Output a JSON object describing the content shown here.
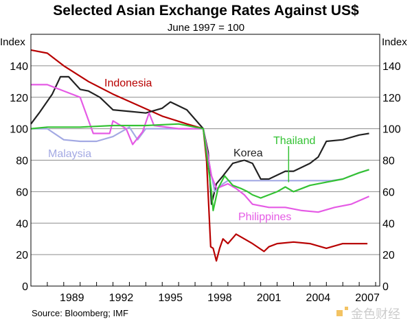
{
  "chart_data": {
    "type": "line",
    "title": "Selected Asian Exchange Rates Against US$",
    "subtitle": "June 1997 = 100",
    "ylabel_left": "Index",
    "ylabel_right": "Index",
    "xlim": [
      1987.0,
      2008.25
    ],
    "ylim": [
      0,
      160
    ],
    "yticks": [
      0,
      20,
      40,
      60,
      80,
      100,
      120,
      140
    ],
    "xtick_labels": [
      "1989",
      "1992",
      "1995",
      "1998",
      "2001",
      "2004",
      "2007"
    ],
    "grid": true,
    "source": "Source: Bloomberg; IMF",
    "series": [
      {
        "name": "Indonesia",
        "color": "#b80000",
        "x": [
          1987,
          1988,
          1989,
          1990.5,
          1992,
          1993.5,
          1995,
          1996.5,
          1997.5,
          1997.7,
          1997.95,
          1998.1,
          1998.3,
          1998.5,
          1998.7,
          1999,
          1999.5,
          2000,
          2000.5,
          2001.2,
          2001.5,
          2002,
          2003,
          2004,
          2005,
          2006,
          2007.5
        ],
        "y": [
          150,
          148,
          140,
          130,
          122,
          115,
          108,
          103,
          100,
          80,
          25,
          24,
          16,
          24,
          30,
          27,
          33,
          30,
          27,
          22,
          25,
          27,
          28,
          27,
          24,
          27,
          27
        ]
      },
      {
        "name": "Korea",
        "color": "#222222",
        "x": [
          1987,
          1987.5,
          1988.3,
          1988.8,
          1989.3,
          1990,
          1990.5,
          1991.2,
          1992,
          1993,
          1994,
          1995,
          1995.5,
          1996.5,
          1997.5,
          1997.8,
          1998.0,
          1998.3,
          1998.7,
          1999.3,
          2000,
          2000.5,
          2001,
          2001.5,
          2002.5,
          2003,
          2004,
          2004.5,
          2005,
          2006,
          2007,
          2007.6
        ],
        "y": [
          103,
          110,
          122,
          133,
          133,
          125,
          124,
          120,
          112,
          111,
          110,
          113,
          117,
          112,
          100,
          85,
          52,
          65,
          70,
          78,
          80,
          78,
          68,
          68,
          73,
          73,
          78,
          82,
          92,
          93,
          96,
          97
        ]
      },
      {
        "name": "Malaysia",
        "color": "#a3a9e3",
        "x": [
          1987,
          1988,
          1989,
          1990,
          1991,
          1992,
          1993,
          1993.5,
          1994,
          1996,
          1997.5,
          1998,
          1998.2,
          1998.7,
          1999,
          2003,
          2005.3,
          2006,
          2007,
          2007.6
        ],
        "y": [
          100,
          100,
          93,
          92,
          92,
          95,
          101,
          93,
          100,
          100,
          100,
          70,
          60,
          65,
          67,
          67,
          67,
          68,
          72,
          74
        ]
      },
      {
        "name": "Philippines",
        "color": "#e55ae5",
        "x": [
          1987,
          1988,
          1989,
          1990,
          1990.8,
          1991.8,
          1992,
          1992.8,
          1993.2,
          1993.8,
          1994.2,
          1994.5,
          1996,
          1997.5,
          1998,
          1998.3,
          1999,
          1999.5,
          2000,
          2000.5,
          2001.5,
          2002.5,
          2003.5,
          2004.5,
          2005.5,
          2006.5,
          2007.6
        ],
        "y": [
          128,
          128,
          124,
          120,
          97,
          97,
          105,
          100,
          90,
          98,
          110,
          102,
          100,
          100,
          70,
          62,
          65,
          62,
          58,
          52,
          50,
          50,
          48,
          47,
          50,
          52,
          57
        ]
      },
      {
        "name": "Thailand",
        "color": "#33c233",
        "x": [
          1987,
          1988,
          1990,
          1992,
          1994,
          1996,
          1997.5,
          1998,
          1998.1,
          1998.4,
          1998.8,
          1999.3,
          1999.8,
          2000.2,
          2000.5,
          2001,
          2001.5,
          2002,
          2002.5,
          2003,
          2003.5,
          2004,
          2005,
          2006,
          2007,
          2007.6
        ],
        "y": [
          100,
          101,
          101,
          102,
          102,
          103,
          100,
          60,
          48,
          62,
          70,
          64,
          62,
          60,
          58,
          56,
          58,
          60,
          63,
          60,
          62,
          64,
          66,
          68,
          72,
          74
        ]
      }
    ]
  },
  "watermark": "金色财经"
}
